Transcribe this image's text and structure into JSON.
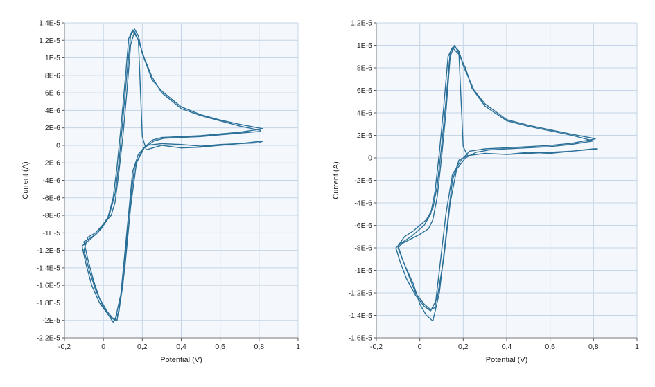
{
  "chart_data": [
    {
      "type": "line",
      "title": "",
      "xlabel": "Potential (V)",
      "ylabel": "Current (A)",
      "xlim": [
        -0.2,
        1
      ],
      "ylim": [
        -2.2e-05,
        1.4e-05
      ],
      "x_ticks": [
        -0.2,
        0,
        0.2,
        0.4,
        0.6,
        0.8,
        1
      ],
      "x_tick_labels": [
        "-0,2",
        "0",
        "0,2",
        "0,4",
        "0,6",
        "0,8",
        "1"
      ],
      "y_ticks": [
        1.4e-05,
        1.2e-05,
        1e-05,
        8e-06,
        6e-06,
        4e-06,
        2e-06,
        0,
        -2e-06,
        -4e-06,
        -6e-06,
        -8e-06,
        -1e-05,
        -1.2e-05,
        -1.4e-05,
        -1.6e-05,
        -1.8e-05,
        -2e-05,
        -2.2e-05
      ],
      "y_tick_labels": [
        "1,4E-5",
        "1,2E-5",
        "1E-5",
        "8E-6",
        "6E-6",
        "4E-6",
        "2E-6",
        "0",
        "-2E-6",
        "-4E-6",
        "-6E-6",
        "-8E-6",
        "-1E-5",
        "-1,2E-5",
        "-1,4E-5",
        "-1,6E-5",
        "-1,8E-5",
        "-2E-5",
        "-2,2E-5"
      ],
      "grid": true,
      "line_color": "#2a6f97",
      "series": [
        {
          "x": [
            0.82,
            0.7,
            0.6,
            0.5,
            0.4,
            0.3,
            0.25,
            0.2,
            0.18,
            0.16,
            0.14,
            0.12,
            0.1,
            0.08,
            0.06,
            0.03,
            0,
            -0.03,
            -0.06,
            -0.1,
            -0.08,
            -0.05,
            -0.02,
            0.02,
            0.05,
            0.07,
            0.1,
            0.13,
            0.16,
            0.2,
            0.25,
            0.3,
            0.4,
            0.5,
            0.6,
            0.7,
            0.82
          ],
          "y": [
            1.9e-06,
            2.4e-06,
            2.9e-06,
            3.5e-06,
            4.4e-06,
            6.2e-06,
            7.5e-06,
            1.05e-05,
            1.25e-05,
            1.33e-05,
            1.26e-05,
            8e-06,
            3e-06,
            -2e-06,
            -5.5e-06,
            -8e-06,
            -9e-06,
            -1e-05,
            -1.05e-05,
            -1.1e-05,
            -1.3e-05,
            -1.55e-05,
            -1.75e-05,
            -1.9e-05,
            -1.98e-05,
            -2e-05,
            -1.6e-05,
            -8e-06,
            -2.5e-06,
            -5e-07,
            6e-07,
            9e-07,
            1e-06,
            1.1e-06,
            1.3e-06,
            1.5e-06,
            1.9e-06
          ]
        },
        {
          "x": [
            0.81,
            0.7,
            0.6,
            0.5,
            0.4,
            0.3,
            0.25,
            0.21,
            0.18,
            0.15,
            0.13,
            0.11,
            0.09,
            0.07,
            0.05,
            0.02,
            -0.01,
            -0.04,
            -0.07,
            -0.11,
            -0.09,
            -0.06,
            -0.02,
            0.02,
            0.05,
            0.08,
            0.11,
            0.14,
            0.17,
            0.21,
            0.26,
            0.31,
            0.4,
            0.5,
            0.6,
            0.7,
            0.81
          ],
          "y": [
            1.7e-06,
            2.2e-06,
            2.8e-06,
            3.4e-06,
            4.2e-06,
            6e-06,
            7.8e-06,
            1e-05,
            1.2e-05,
            1.32e-05,
            1.22e-05,
            7e-06,
            2e-06,
            -2.5e-06,
            -6e-06,
            -8.5e-06,
            -9.5e-06,
            -1.02e-05,
            -1.08e-05,
            -1.15e-05,
            -1.35e-05,
            -1.6e-05,
            -1.8e-05,
            -1.92e-05,
            -2.02e-05,
            -1.9e-05,
            -1.4e-05,
            -7e-06,
            -2e-06,
            -3e-07,
            5e-07,
            8e-07,
            9e-07,
            1e-06,
            1.2e-06,
            1.4e-06,
            1.6e-06
          ]
        },
        {
          "x": [
            0.82,
            0.7,
            0.6,
            0.5,
            0.4,
            0.3,
            0.22,
            0.2,
            0.18,
            0.16,
            0.14,
            0.12,
            0.1,
            0.08,
            0.06,
            0.04,
            0,
            -0.04,
            -0.08,
            -0.1,
            -0.07,
            -0.04,
            0,
            0.03,
            0.06,
            0.09,
            0.12,
            0.15,
            0.18,
            0.22,
            0.3,
            0.4,
            0.5,
            0.6,
            0.7,
            0.8,
            0.82
          ],
          "y": [
            5e-07,
            2e-07,
            0,
            -2e-07,
            -3e-07,
            0,
            -5e-07,
            1e-06,
            1.2e-05,
            1.3e-05,
            1.15e-05,
            6e-06,
            1e-06,
            -3e-06,
            -6.5e-06,
            -8e-06,
            -9e-06,
            -1e-05,
            -1.05e-05,
            -1.2e-05,
            -1.45e-05,
            -1.65e-05,
            -1.85e-05,
            -1.95e-05,
            -2e-05,
            -1.7e-05,
            -1e-05,
            -3e-06,
            -1e-06,
            0,
            2e-07,
            1e-07,
            -1e-07,
            1e-07,
            2e-07,
            3e-07,
            5e-07
          ]
        }
      ]
    },
    {
      "type": "line",
      "title": "",
      "xlabel": "Potential (V)",
      "ylabel": "Current (A)",
      "xlim": [
        -0.2,
        1
      ],
      "ylim": [
        -1.6e-05,
        1.2e-05
      ],
      "x_ticks": [
        -0.2,
        0,
        0.2,
        0.4,
        0.6,
        0.8,
        1
      ],
      "x_tick_labels": [
        "-0,2",
        "0",
        "0,2",
        "0,4",
        "0,6",
        "0,8",
        "1"
      ],
      "y_ticks": [
        1.2e-05,
        1e-05,
        8e-06,
        6e-06,
        4e-06,
        2e-06,
        0,
        -2e-06,
        -4e-06,
        -6e-06,
        -8e-06,
        -1e-05,
        -1.2e-05,
        -1.4e-05,
        -1.6e-05
      ],
      "y_tick_labels": [
        "1,2E-5",
        "1E-5",
        "8E-6",
        "6E-6",
        "4E-6",
        "2E-6",
        "0",
        "-2E-6",
        "-4E-6",
        "-6E-6",
        "-8E-6",
        "-1E-5",
        "-1,2E-5",
        "-1,4E-5",
        "-1,6E-5"
      ],
      "grid": true,
      "line_color": "#2a6f97",
      "series": [
        {
          "x": [
            0.81,
            0.7,
            0.6,
            0.5,
            0.4,
            0.3,
            0.25,
            0.2,
            0.18,
            0.16,
            0.14,
            0.12,
            0.1,
            0.08,
            0.06,
            0.03,
            0,
            -0.03,
            -0.07,
            -0.1,
            -0.08,
            -0.05,
            -0.02,
            0.02,
            0.05,
            0.07,
            0.09,
            0.12,
            0.15,
            0.19,
            0.23,
            0.3,
            0.4,
            0.5,
            0.6,
            0.7,
            0.81
          ],
          "y": [
            1.7e-06,
            2.1e-06,
            2.5e-06,
            2.9e-06,
            3.4e-06,
            4.8e-06,
            6e-06,
            8.2e-06,
            9.5e-06,
            9.9e-06,
            9.4e-06,
            5e-06,
            1e-06,
            -2.5e-06,
            -4.5e-06,
            -5.5e-06,
            -6e-06,
            -6.5e-06,
            -7e-06,
            -7.8e-06,
            -9e-06,
            -1.05e-05,
            -1.2e-05,
            -1.3e-05,
            -1.35e-05,
            -1.33e-05,
            -1e-05,
            -5e-06,
            -1.5e-06,
            -2e-07,
            6e-07,
            8e-07,
            9e-07,
            1e-06,
            1.1e-06,
            1.3e-06,
            1.7e-06
          ]
        },
        {
          "x": [
            0.8,
            0.7,
            0.6,
            0.5,
            0.4,
            0.3,
            0.24,
            0.21,
            0.18,
            0.15,
            0.13,
            0.11,
            0.09,
            0.07,
            0.05,
            0.02,
            -0.01,
            -0.04,
            -0.08,
            -0.11,
            -0.09,
            -0.06,
            -0.02,
            0.02,
            0.05,
            0.08,
            0.11,
            0.14,
            0.17,
            0.21,
            0.26,
            0.32,
            0.4,
            0.5,
            0.6,
            0.7,
            0.8
          ],
          "y": [
            1.5e-06,
            2e-06,
            2.4e-06,
            2.8e-06,
            3.3e-06,
            4.6e-06,
            6.2e-06,
            8e-06,
            9.2e-06,
            9.8e-06,
            9e-06,
            4.5e-06,
            5e-07,
            -3e-06,
            -5e-06,
            -6e-06,
            -6.5e-06,
            -7e-06,
            -7.5e-06,
            -8e-06,
            -9.3e-06,
            -1.08e-05,
            -1.22e-05,
            -1.32e-05,
            -1.36e-05,
            -1.25e-05,
            -9e-06,
            -4e-06,
            -1e-06,
            0,
            5e-07,
            7e-07,
            8e-07,
            9e-07,
            1e-06,
            1.2e-06,
            1.5e-06
          ]
        },
        {
          "x": [
            0.82,
            0.7,
            0.6,
            0.5,
            0.4,
            0.3,
            0.22,
            0.2,
            0.18,
            0.16,
            0.14,
            0.12,
            0.1,
            0.08,
            0.06,
            0.04,
            0,
            -0.04,
            -0.08,
            -0.1,
            -0.07,
            -0.03,
            0,
            0.03,
            0.06,
            0.09,
            0.12,
            0.15,
            0.18,
            0.22,
            0.3,
            0.4,
            0.5,
            0.6,
            0.7,
            0.8,
            0.82
          ],
          "y": [
            8e-07,
            6e-07,
            5e-07,
            4e-07,
            3e-07,
            4e-07,
            2e-07,
            1e-06,
            9.3e-06,
            1e-05,
            9e-06,
            4e-06,
            0,
            -3.5e-06,
            -5.5e-06,
            -6.3e-06,
            -6.8e-06,
            -7.2e-06,
            -7.6e-06,
            -8e-06,
            -9.5e-06,
            -1.12e-05,
            -1.3e-05,
            -1.4e-05,
            -1.45e-05,
            -1.2e-05,
            -7e-06,
            -2e-06,
            -2e-07,
            2e-07,
            4e-07,
            3e-07,
            5e-07,
            4e-07,
            6e-07,
            8e-07,
            8e-07
          ]
        }
      ]
    }
  ]
}
